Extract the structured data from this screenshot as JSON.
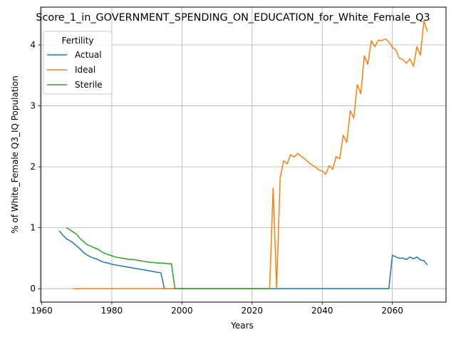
{
  "chart_data": {
    "type": "line",
    "title": "Score_1_in_GOVERNMENT_SPENDING_ON_EDUCATION_for_White_Female_Q3",
    "xlabel": "Years",
    "ylabel": "% of White_Female Q3_IQ Population",
    "xlim": [
      1959.7,
      2075.3
    ],
    "ylim": [
      -0.22,
      4.62
    ],
    "x_ticks": [
      1960,
      1980,
      2000,
      2020,
      2040,
      2060
    ],
    "y_ticks": [
      0,
      1,
      2,
      3,
      4
    ],
    "grid": true,
    "legend": {
      "title": "Fertility",
      "placement": "top-left"
    },
    "series": [
      {
        "name": "Actual",
        "color": "#1f77b4",
        "points": [
          [
            1965,
            0.95
          ],
          [
            1966,
            0.88
          ],
          [
            1967,
            0.82
          ],
          [
            1968,
            0.79
          ],
          [
            1969,
            0.75
          ],
          [
            1970,
            0.7
          ],
          [
            1971,
            0.65
          ],
          [
            1972,
            0.59
          ],
          [
            1973,
            0.55
          ],
          [
            1974,
            0.52
          ],
          [
            1975,
            0.5
          ],
          [
            1976,
            0.48
          ],
          [
            1977,
            0.45
          ],
          [
            1978,
            0.43
          ],
          [
            1979,
            0.42
          ],
          [
            1980,
            0.4
          ],
          [
            1981,
            0.39
          ],
          [
            1982,
            0.38
          ],
          [
            1983,
            0.37
          ],
          [
            1984,
            0.36
          ],
          [
            1985,
            0.35
          ],
          [
            1986,
            0.34
          ],
          [
            1987,
            0.33
          ],
          [
            1988,
            0.32
          ],
          [
            1989,
            0.31
          ],
          [
            1990,
            0.3
          ],
          [
            1991,
            0.29
          ],
          [
            1992,
            0.28
          ],
          [
            1993,
            0.27
          ],
          [
            1994,
            0.26
          ],
          [
            1995,
            0.0
          ],
          [
            1996,
            0.0
          ],
          [
            1998,
            0.0
          ],
          [
            2026,
            0.0
          ],
          [
            2059,
            0.0
          ],
          [
            2060,
            0.55
          ],
          [
            2061,
            0.52
          ],
          [
            2062,
            0.5
          ],
          [
            2063,
            0.5
          ],
          [
            2064,
            0.48
          ],
          [
            2065,
            0.52
          ],
          [
            2066,
            0.49
          ],
          [
            2067,
            0.52
          ],
          [
            2068,
            0.47
          ],
          [
            2069,
            0.46
          ],
          [
            2070,
            0.39
          ]
        ]
      },
      {
        "name": "Ideal",
        "color": "#ff7f0e",
        "points": [
          [
            1969,
            0.0
          ],
          [
            2025,
            0.0
          ],
          [
            2026,
            1.65
          ],
          [
            2027,
            0.0
          ],
          [
            2028,
            1.82
          ],
          [
            2029,
            2.1
          ],
          [
            2030,
            2.05
          ],
          [
            2031,
            2.2
          ],
          [
            2032,
            2.16
          ],
          [
            2033,
            2.22
          ],
          [
            2034,
            2.17
          ],
          [
            2035,
            2.13
          ],
          [
            2036,
            2.08
          ],
          [
            2037,
            2.03
          ],
          [
            2038,
            2.0
          ],
          [
            2039,
            1.95
          ],
          [
            2040,
            1.93
          ],
          [
            2041,
            1.88
          ],
          [
            2042,
            2.02
          ],
          [
            2043,
            1.96
          ],
          [
            2044,
            2.17
          ],
          [
            2045,
            2.13
          ],
          [
            2046,
            2.52
          ],
          [
            2047,
            2.4
          ],
          [
            2048,
            2.92
          ],
          [
            2049,
            2.8
          ],
          [
            2050,
            3.35
          ],
          [
            2051,
            3.2
          ],
          [
            2052,
            3.82
          ],
          [
            2053,
            3.68
          ],
          [
            2054,
            4.07
          ],
          [
            2055,
            3.97
          ],
          [
            2056,
            4.08
          ],
          [
            2057,
            4.07
          ],
          [
            2058,
            4.1
          ],
          [
            2059,
            4.05
          ],
          [
            2060,
            3.96
          ],
          [
            2061,
            3.92
          ],
          [
            2062,
            3.78
          ],
          [
            2063,
            3.76
          ],
          [
            2064,
            3.7
          ],
          [
            2065,
            3.77
          ],
          [
            2066,
            3.65
          ],
          [
            2067,
            3.97
          ],
          [
            2068,
            3.83
          ],
          [
            2069,
            4.4
          ],
          [
            2070,
            4.22
          ]
        ]
      },
      {
        "name": "Sterile",
        "color": "#2ca02c",
        "points": [
          [
            1967,
            1.0
          ],
          [
            1968,
            0.97
          ],
          [
            1969,
            0.93
          ],
          [
            1970,
            0.89
          ],
          [
            1971,
            0.82
          ],
          [
            1972,
            0.77
          ],
          [
            1973,
            0.72
          ],
          [
            1974,
            0.7
          ],
          [
            1975,
            0.67
          ],
          [
            1976,
            0.65
          ],
          [
            1977,
            0.61
          ],
          [
            1978,
            0.58
          ],
          [
            1979,
            0.56
          ],
          [
            1980,
            0.54
          ],
          [
            1981,
            0.52
          ],
          [
            1982,
            0.51
          ],
          [
            1983,
            0.5
          ],
          [
            1984,
            0.49
          ],
          [
            1985,
            0.48
          ],
          [
            1986,
            0.48
          ],
          [
            1987,
            0.47
          ],
          [
            1988,
            0.46
          ],
          [
            1989,
            0.45
          ],
          [
            1990,
            0.44
          ],
          [
            1991,
            0.43
          ],
          [
            1992,
            0.43
          ],
          [
            1993,
            0.42
          ],
          [
            1994,
            0.42
          ],
          [
            1995,
            0.42
          ],
          [
            1996,
            0.41
          ],
          [
            1997,
            0.41
          ],
          [
            1998,
            0.0
          ],
          [
            2025,
            0.0
          ]
        ]
      }
    ]
  }
}
